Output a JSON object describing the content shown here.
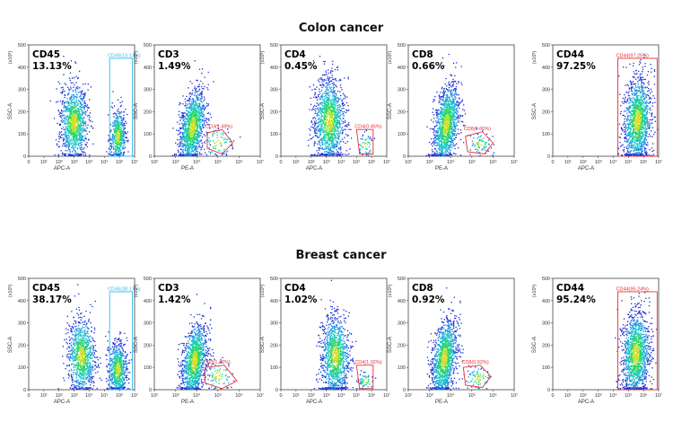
{
  "sections": [
    {
      "title": "Colon cancer"
    },
    {
      "title": "Breast cancer"
    }
  ],
  "chart_data": [
    {
      "type": "scatter",
      "section": "Colon cancer",
      "marker": "CD45",
      "percent": "13.13%",
      "gate_label": "CD45(13.13%)",
      "gate_color": "#33bbee",
      "xlabel": "APC-A",
      "ylabel": "SSC-A",
      "y_multiplier": "(x10³)",
      "x_ticks": [
        "0",
        "10¹",
        "10²",
        "10³",
        "10⁴",
        "10⁵",
        "10⁶",
        "10⁷"
      ],
      "y_ticks": [
        "0",
        "100",
        "200",
        "300",
        "400",
        "500"
      ],
      "xlim": [
        0,
        7
      ],
      "ylim": [
        0,
        500
      ],
      "clusters": [
        {
          "cx": 3.0,
          "cy": 150,
          "sx": 0.45,
          "sy": 85,
          "n": 1100
        },
        {
          "cx": 5.9,
          "cy": 90,
          "sx": 0.25,
          "sy": 60,
          "n": 520
        }
      ],
      "gate": [
        [
          5.35,
          0
        ],
        [
          6.85,
          0
        ],
        [
          6.85,
          440
        ],
        [
          5.35,
          440
        ]
      ]
    },
    {
      "type": "scatter",
      "section": "Colon cancer",
      "marker": "CD3",
      "percent": "1.49%",
      "gate_label": "CD3(1.49%)",
      "gate_color": "#e53030",
      "xlabel": "PE-A",
      "ylabel": "SSC-A",
      "y_multiplier": "(x10³)",
      "x_ticks": [
        "10²",
        "10³",
        "10⁴",
        "10⁵",
        "10⁶",
        "10⁷"
      ],
      "y_ticks": [
        "0",
        "100",
        "200",
        "300",
        "400",
        "500"
      ],
      "xlim": [
        2,
        7
      ],
      "ylim": [
        0,
        500
      ],
      "clusters": [
        {
          "cx": 3.8,
          "cy": 130,
          "sx": 0.3,
          "sy": 80,
          "tilt": 110,
          "n": 1300
        },
        {
          "cx": 5.0,
          "cy": 60,
          "sx": 0.35,
          "sy": 35,
          "n": 90
        }
      ],
      "gate": [
        [
          4.5,
          105
        ],
        [
          5.2,
          120
        ],
        [
          5.7,
          60
        ],
        [
          5.2,
          10
        ],
        [
          4.5,
          35
        ]
      ]
    },
    {
      "type": "scatter",
      "section": "Colon cancer",
      "marker": "CD4",
      "percent": "0.45%",
      "gate_label": "CD4(0.45%)",
      "gate_color": "#e53030",
      "xlabel": "APC-A",
      "ylabel": "SSC-A",
      "y_multiplier": "(x10³)",
      "x_ticks": [
        "0",
        "10¹",
        "10²",
        "10³",
        "10⁴",
        "10⁵",
        "10⁶",
        "10⁷"
      ],
      "y_ticks": [
        "0",
        "100",
        "200",
        "300",
        "400",
        "500"
      ],
      "xlim": [
        0,
        7
      ],
      "ylim": [
        0,
        500
      ],
      "clusters": [
        {
          "cx": 3.2,
          "cy": 160,
          "sx": 0.5,
          "sy": 95,
          "n": 1300
        },
        {
          "cx": 5.6,
          "cy": 50,
          "sx": 0.25,
          "sy": 25,
          "n": 50
        }
      ],
      "gate": [
        [
          5.0,
          120
        ],
        [
          6.1,
          120
        ],
        [
          6.1,
          10
        ],
        [
          5.2,
          10
        ]
      ]
    },
    {
      "type": "scatter",
      "section": "Colon cancer",
      "marker": "CD8",
      "percent": "0.66%",
      "gate_label": "CD8(0.66%)",
      "gate_color": "#e53030",
      "xlabel": "PE-A",
      "ylabel": "SSC-A",
      "y_multiplier": "(x10³)",
      "x_ticks": [
        "10²",
        "10³",
        "10⁴",
        "10⁵",
        "10⁶",
        "10⁷"
      ],
      "y_ticks": [
        "0",
        "100",
        "200",
        "300",
        "400",
        "500"
      ],
      "xlim": [
        2,
        7
      ],
      "ylim": [
        0,
        500
      ],
      "clusters": [
        {
          "cx": 3.8,
          "cy": 140,
          "sx": 0.3,
          "sy": 85,
          "tilt": 120,
          "n": 1300
        },
        {
          "cx": 5.4,
          "cy": 55,
          "sx": 0.25,
          "sy": 25,
          "n": 80
        }
      ],
      "gate": [
        [
          4.7,
          90
        ],
        [
          5.5,
          110
        ],
        [
          6.0,
          60
        ],
        [
          5.6,
          10
        ],
        [
          4.8,
          20
        ]
      ]
    },
    {
      "type": "scatter",
      "section": "Colon cancer",
      "marker": "CD44",
      "percent": "97.25%",
      "gate_label": "CD44(97.25%)",
      "gate_color": "#e53030",
      "xlabel": "APC-A",
      "ylabel": "SSC-A",
      "y_multiplier": "(x10³)",
      "x_ticks": [
        "0",
        "10¹",
        "10²",
        "10³",
        "10⁴",
        "10⁵",
        "10⁶",
        "10⁷"
      ],
      "y_ticks": [
        "0",
        "100",
        "200",
        "300",
        "400",
        "500"
      ],
      "xlim": [
        0,
        7
      ],
      "ylim": [
        0,
        500
      ],
      "clusters": [
        {
          "cx": 5.6,
          "cy": 160,
          "sx": 0.45,
          "sy": 95,
          "tilt": 30,
          "n": 1400
        }
      ],
      "gate": [
        [
          4.3,
          0
        ],
        [
          6.9,
          0
        ],
        [
          6.9,
          440
        ],
        [
          4.3,
          440
        ]
      ]
    },
    {
      "type": "scatter",
      "section": "Breast cancer",
      "marker": "CD45",
      "percent": "38.17%",
      "gate_label": "CD45(38.17%)",
      "gate_color": "#33bbee",
      "xlabel": "APC-A",
      "ylabel": "SSC-A",
      "y_multiplier": "(x10³)",
      "x_ticks": [
        "0",
        "10¹",
        "10²",
        "10³",
        "10⁴",
        "10⁵",
        "10⁶",
        "10⁷"
      ],
      "y_ticks": [
        "0",
        "100",
        "200",
        "300",
        "400",
        "500"
      ],
      "xlim": [
        0,
        7
      ],
      "ylim": [
        0,
        500
      ],
      "clusters": [
        {
          "cx": 3.5,
          "cy": 150,
          "sx": 0.45,
          "sy": 85,
          "n": 1000
        },
        {
          "cx": 5.9,
          "cy": 90,
          "sx": 0.3,
          "sy": 60,
          "n": 700
        }
      ],
      "gate": [
        [
          5.35,
          0
        ],
        [
          6.85,
          0
        ],
        [
          6.85,
          440
        ],
        [
          5.35,
          440
        ]
      ]
    },
    {
      "type": "scatter",
      "section": "Breast cancer",
      "marker": "CD3",
      "percent": "1.42%",
      "gate_label": "CD3(1.42%)",
      "gate_color": "#e53030",
      "xlabel": "PE-A",
      "ylabel": "SSC-A",
      "y_multiplier": "(x10³)",
      "x_ticks": [
        "10²",
        "10³",
        "10⁴",
        "10⁵",
        "10⁶",
        "10⁷"
      ],
      "y_ticks": [
        "0",
        "100",
        "200",
        "300",
        "400",
        "500"
      ],
      "xlim": [
        2,
        7
      ],
      "ylim": [
        0,
        500
      ],
      "clusters": [
        {
          "cx": 3.9,
          "cy": 130,
          "sx": 0.3,
          "sy": 80,
          "tilt": 100,
          "n": 1200
        },
        {
          "cx": 5.0,
          "cy": 60,
          "sx": 0.35,
          "sy": 35,
          "n": 80
        }
      ],
      "gate": [
        [
          4.4,
          100
        ],
        [
          5.3,
          110
        ],
        [
          5.9,
          40
        ],
        [
          5.2,
          5
        ],
        [
          4.4,
          30
        ]
      ]
    },
    {
      "type": "scatter",
      "section": "Breast cancer",
      "marker": "CD4",
      "percent": "1.02%",
      "gate_label": "CD4(1.02%)",
      "gate_color": "#e53030",
      "xlabel": "APC-A",
      "ylabel": "SSC-A",
      "y_multiplier": "(x10³)",
      "x_ticks": [
        "0",
        "10¹",
        "10²",
        "10³",
        "10⁴",
        "10⁵",
        "10⁶",
        "10⁷"
      ],
      "y_ticks": [
        "0",
        "100",
        "200",
        "300",
        "400",
        "500"
      ],
      "xlim": [
        0,
        7
      ],
      "ylim": [
        0,
        500
      ],
      "clusters": [
        {
          "cx": 3.6,
          "cy": 150,
          "sx": 0.45,
          "sy": 90,
          "n": 1200
        },
        {
          "cx": 5.6,
          "cy": 40,
          "sx": 0.25,
          "sy": 20,
          "n": 60
        }
      ],
      "gate": [
        [
          5.0,
          110
        ],
        [
          6.1,
          110
        ],
        [
          6.1,
          5
        ],
        [
          5.2,
          5
        ]
      ]
    },
    {
      "type": "scatter",
      "section": "Breast cancer",
      "marker": "CD8",
      "percent": "0.92%",
      "gate_label": "CD8(0.92%)",
      "gate_color": "#e53030",
      "xlabel": "PE-A",
      "ylabel": "SSC-A",
      "y_multiplier": "(x10³)",
      "x_ticks": [
        "10²",
        "10³",
        "10⁴",
        "10⁵",
        "10⁶",
        "10⁷"
      ],
      "y_ticks": [
        "0",
        "100",
        "200",
        "300",
        "400",
        "500"
      ],
      "xlim": [
        2,
        7
      ],
      "ylim": [
        0,
        500
      ],
      "clusters": [
        {
          "cx": 3.7,
          "cy": 140,
          "sx": 0.3,
          "sy": 85,
          "tilt": 110,
          "n": 1300
        },
        {
          "cx": 5.3,
          "cy": 50,
          "sx": 0.3,
          "sy": 25,
          "n": 80
        }
      ],
      "gate": [
        [
          4.6,
          100
        ],
        [
          5.4,
          110
        ],
        [
          5.9,
          60
        ],
        [
          5.5,
          10
        ],
        [
          4.7,
          20
        ]
      ]
    },
    {
      "type": "scatter",
      "section": "Breast cancer",
      "marker": "CD44",
      "percent": "95.24%",
      "gate_label": "CD44(95.24%)",
      "gate_color": "#e53030",
      "xlabel": "APC-A",
      "ylabel": "SSC-A",
      "y_multiplier": "(x10³)",
      "x_ticks": [
        "0",
        "10¹",
        "10²",
        "10³",
        "10⁴",
        "10⁵",
        "10⁶",
        "10⁷"
      ],
      "y_ticks": [
        "0",
        "100",
        "200",
        "300",
        "400",
        "500"
      ],
      "xlim": [
        0,
        7
      ],
      "ylim": [
        0,
        500
      ],
      "clusters": [
        {
          "cx": 5.5,
          "cy": 160,
          "sx": 0.45,
          "sy": 95,
          "tilt": 30,
          "n": 1400
        }
      ],
      "gate": [
        [
          4.3,
          0
        ],
        [
          6.9,
          0
        ],
        [
          6.9,
          440
        ],
        [
          4.3,
          440
        ]
      ]
    }
  ]
}
